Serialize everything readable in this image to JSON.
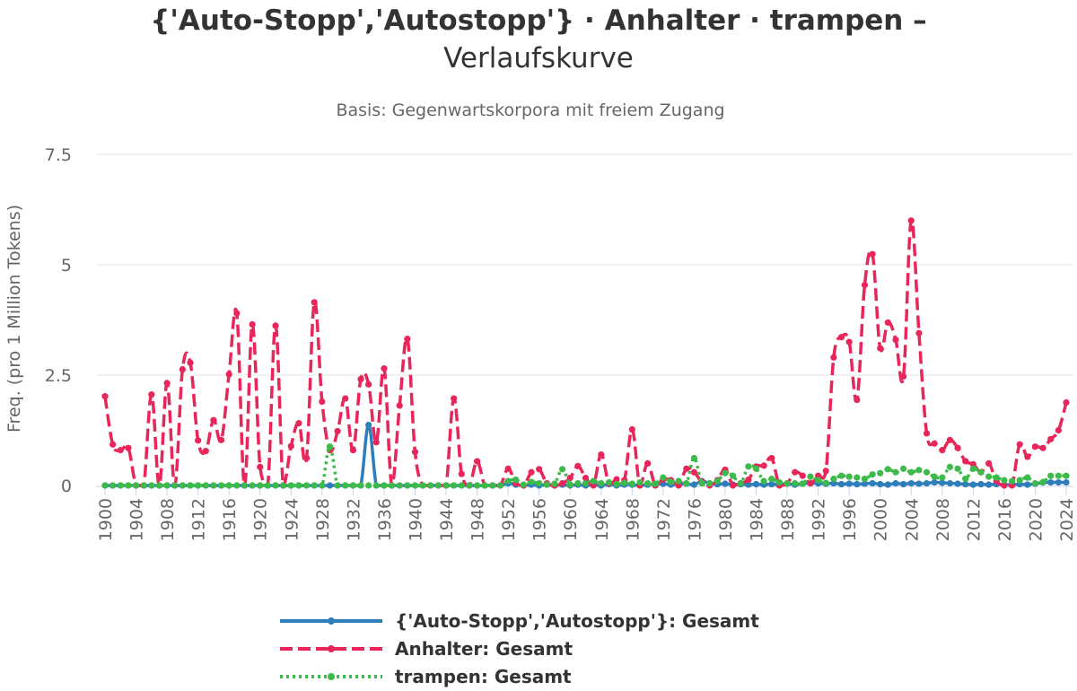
{
  "title_line1": "{'Auto-Stopp','Autostopp'} · Anhalter · trampen –",
  "title_line2": "Verlaufskurve",
  "subtitle": "Basis: Gegenwartskorpora mit freiem Zugang",
  "chart_data": {
    "type": "line",
    "ylabel": "Freq. (pro 1 Million Tokens)",
    "ylim": [
      0,
      7.5
    ],
    "yticks": [
      0,
      2.5,
      5,
      7.5
    ],
    "ytick_labels": [
      "0",
      "2.5",
      "5",
      "7.5"
    ],
    "xlim": [
      1900,
      2024
    ],
    "xticks": [
      1900,
      1904,
      1908,
      1912,
      1916,
      1920,
      1924,
      1928,
      1932,
      1936,
      1940,
      1944,
      1948,
      1952,
      1956,
      1960,
      1964,
      1968,
      1972,
      1976,
      1980,
      1984,
      1988,
      1992,
      1996,
      2000,
      2004,
      2008,
      2012,
      2016,
      2020,
      2024
    ],
    "grid": true,
    "legend_position": "bottom",
    "series": [
      {
        "name": "{'Auto-Stopp','Autostopp'}: Gesamt",
        "color": "#2f7ebc",
        "dash": "solid",
        "x": [
          1900,
          1901,
          1902,
          1903,
          1904,
          1905,
          1906,
          1907,
          1908,
          1909,
          1910,
          1911,
          1912,
          1913,
          1914,
          1915,
          1916,
          1917,
          1918,
          1919,
          1920,
          1921,
          1922,
          1923,
          1924,
          1925,
          1926,
          1927,
          1928,
          1929,
          1930,
          1931,
          1932,
          1933,
          1934,
          1935,
          1936,
          1937,
          1938,
          1939,
          1940,
          1941,
          1942,
          1943,
          1944,
          1945,
          1946,
          1947,
          1948,
          1949,
          1950,
          1951,
          1952,
          1953,
          1954,
          1955,
          1956,
          1957,
          1958,
          1959,
          1960,
          1961,
          1962,
          1963,
          1964,
          1965,
          1966,
          1967,
          1968,
          1969,
          1970,
          1971,
          1972,
          1973,
          1974,
          1975,
          1976,
          1977,
          1978,
          1979,
          1980,
          1981,
          1982,
          1983,
          1984,
          1985,
          1986,
          1987,
          1988,
          1989,
          1990,
          1991,
          1992,
          1993,
          1994,
          1995,
          1996,
          1997,
          1998,
          1999,
          2000,
          2001,
          2002,
          2003,
          2004,
          2005,
          2006,
          2007,
          2008,
          2009,
          2010,
          2011,
          2012,
          2013,
          2014,
          2015,
          2016,
          2017,
          2018,
          2019,
          2020,
          2021,
          2022,
          2023,
          2024
        ],
        "values": [
          0,
          0,
          0,
          0,
          0,
          0,
          0,
          0,
          0,
          0,
          0,
          0,
          0,
          0,
          0,
          0,
          0,
          0,
          0,
          0,
          0,
          0,
          0,
          0,
          0,
          0,
          0,
          0,
          0,
          0,
          0,
          0,
          0,
          0,
          1.37,
          0,
          0,
          0,
          0,
          0,
          0,
          0,
          0,
          0,
          0,
          0,
          0,
          0,
          0,
          0,
          0,
          0,
          0.05,
          0.02,
          0,
          0.02,
          0,
          0.02,
          0,
          0.02,
          0,
          0.02,
          0,
          0.02,
          0,
          0.03,
          0,
          0.02,
          0.02,
          0,
          0.02,
          0.03,
          0.04,
          0.02,
          0.03,
          0.04,
          0.02,
          0.1,
          0.05,
          0.03,
          0.04,
          0.02,
          0.03,
          0.02,
          0.03,
          0.02,
          0.03,
          0.02,
          0.04,
          0.02,
          0.04,
          0.05,
          0.05,
          0.04,
          0.05,
          0.03,
          0.04,
          0.03,
          0.04,
          0.05,
          0.03,
          0.02,
          0.05,
          0.03,
          0.05,
          0.04,
          0.05,
          0.07,
          0.06,
          0.05,
          0.04,
          0.03,
          0.02,
          0.03,
          0.02,
          0.03,
          0.02,
          0.02,
          0.03,
          0.02,
          0.04,
          0.07,
          0.07,
          0.07,
          0.07
        ]
      },
      {
        "name": "Anhalter: Gesamt",
        "color": "#e8265a",
        "dash": "dashed",
        "x": [
          1900,
          1901,
          1902,
          1903,
          1904,
          1905,
          1906,
          1907,
          1908,
          1909,
          1910,
          1911,
          1912,
          1913,
          1914,
          1915,
          1916,
          1917,
          1918,
          1919,
          1920,
          1921,
          1922,
          1923,
          1924,
          1925,
          1926,
          1927,
          1928,
          1929,
          1930,
          1931,
          1932,
          1933,
          1934,
          1935,
          1936,
          1937,
          1938,
          1939,
          1940,
          1941,
          1942,
          1943,
          1944,
          1945,
          1946,
          1947,
          1948,
          1949,
          1950,
          1951,
          1952,
          1953,
          1954,
          1955,
          1956,
          1957,
          1958,
          1959,
          1960,
          1961,
          1962,
          1963,
          1964,
          1965,
          1966,
          1967,
          1968,
          1969,
          1970,
          1971,
          1972,
          1973,
          1974,
          1975,
          1976,
          1977,
          1978,
          1979,
          1980,
          1981,
          1982,
          1983,
          1984,
          1985,
          1986,
          1987,
          1988,
          1989,
          1990,
          1991,
          1992,
          1993,
          1994,
          1995,
          1996,
          1997,
          1998,
          1999,
          2000,
          2001,
          2002,
          2003,
          2004,
          2005,
          2006,
          2007,
          2008,
          2009,
          2010,
          2011,
          2012,
          2013,
          2014,
          2015,
          2016,
          2017,
          2018,
          2019,
          2020,
          2021,
          2022,
          2023,
          2024
        ],
        "values": [
          2.02,
          0.93,
          0.8,
          0.85,
          0,
          0,
          2.06,
          0,
          2.32,
          0,
          2.63,
          2.78,
          1.02,
          0.78,
          1.48,
          1.03,
          2.52,
          3.9,
          0,
          3.65,
          0.42,
          0,
          3.62,
          0,
          0.89,
          1.41,
          0.62,
          4.15,
          1.9,
          0.8,
          1.23,
          1.97,
          0.8,
          2.41,
          2.29,
          0.98,
          2.65,
          0,
          1.81,
          3.32,
          0.76,
          0,
          0,
          0,
          0,
          1.97,
          0.26,
          0,
          0.55,
          0,
          0,
          0,
          0.38,
          0.05,
          0,
          0.3,
          0.37,
          0.05,
          0,
          0.05,
          0.17,
          0.44,
          0.17,
          0,
          0.7,
          0.05,
          0.14,
          0.12,
          1.27,
          0,
          0.5,
          0,
          0.14,
          0.12,
          0,
          0.38,
          0.3,
          0.08,
          0,
          0.12,
          0.36,
          0,
          0.05,
          0.13,
          0.43,
          0.45,
          0.62,
          0,
          0.05,
          0.3,
          0.22,
          0.05,
          0.22,
          0.33,
          2.9,
          3.36,
          3.25,
          1.94,
          4.54,
          5.24,
          3.11,
          3.69,
          3.3,
          2.47,
          6.0,
          3.45,
          1.18,
          0.95,
          0.8,
          1.03,
          0.85,
          0.55,
          0.48,
          0.3,
          0.5,
          0.1,
          0,
          0,
          0.93,
          0.65,
          0.88,
          0.85,
          1.05,
          1.25,
          1.88
        ]
      },
      {
        "name": "trampen: Gesamt",
        "color": "#3dbb4a",
        "dash": "dotted",
        "x": [
          1900,
          1901,
          1902,
          1903,
          1904,
          1905,
          1906,
          1907,
          1908,
          1909,
          1910,
          1911,
          1912,
          1913,
          1914,
          1915,
          1916,
          1917,
          1918,
          1919,
          1920,
          1921,
          1922,
          1923,
          1924,
          1925,
          1926,
          1927,
          1928,
          1929,
          1930,
          1931,
          1932,
          1933,
          1934,
          1935,
          1936,
          1937,
          1938,
          1939,
          1940,
          1941,
          1942,
          1943,
          1944,
          1945,
          1946,
          1947,
          1948,
          1949,
          1950,
          1951,
          1952,
          1953,
          1954,
          1955,
          1956,
          1957,
          1958,
          1959,
          1960,
          1961,
          1962,
          1963,
          1964,
          1965,
          1966,
          1967,
          1968,
          1969,
          1970,
          1971,
          1972,
          1973,
          1974,
          1975,
          1976,
          1977,
          1978,
          1979,
          1980,
          1981,
          1982,
          1983,
          1984,
          1985,
          1986,
          1987,
          1988,
          1989,
          1990,
          1991,
          1992,
          1993,
          1994,
          1995,
          1996,
          1997,
          1998,
          1999,
          2000,
          2001,
          2002,
          2003,
          2004,
          2005,
          2006,
          2007,
          2008,
          2009,
          2010,
          2011,
          2012,
          2013,
          2014,
          2015,
          2016,
          2017,
          2018,
          2019,
          2020,
          2021,
          2022,
          2023,
          2024
        ],
        "values": [
          0,
          0,
          0,
          0,
          0,
          0,
          0,
          0,
          0,
          0,
          0,
          0,
          0,
          0,
          0,
          0,
          0,
          0,
          0,
          0,
          0,
          0,
          0,
          0,
          0,
          0,
          0,
          0,
          0,
          0.88,
          0,
          0,
          0,
          0,
          0,
          0,
          0,
          0,
          0,
          0,
          0,
          0,
          0,
          0,
          0,
          0,
          0,
          0,
          0,
          0,
          0,
          0,
          0.1,
          0.13,
          0.02,
          0.08,
          0.05,
          0.02,
          0.04,
          0.37,
          0.02,
          0.05,
          0.05,
          0.1,
          0.05,
          0.07,
          0.03,
          0.06,
          0.04,
          0.07,
          0.05,
          0.04,
          0.18,
          0.08,
          0.1,
          0.05,
          0.62,
          0.05,
          0.05,
          0.1,
          0.28,
          0.22,
          0.05,
          0.43,
          0.38,
          0.1,
          0.15,
          0.07,
          0.05,
          0.05,
          0.04,
          0.2,
          0.12,
          0.06,
          0.15,
          0.22,
          0.2,
          0.18,
          0.15,
          0.25,
          0.28,
          0.37,
          0.3,
          0.38,
          0.3,
          0.35,
          0.3,
          0.2,
          0.18,
          0.42,
          0.38,
          0.15,
          0.38,
          0.3,
          0.2,
          0.18,
          0.12,
          0.1,
          0.12,
          0.18,
          0.05,
          0.08,
          0.22,
          0.22,
          0.22
        ]
      }
    ]
  }
}
